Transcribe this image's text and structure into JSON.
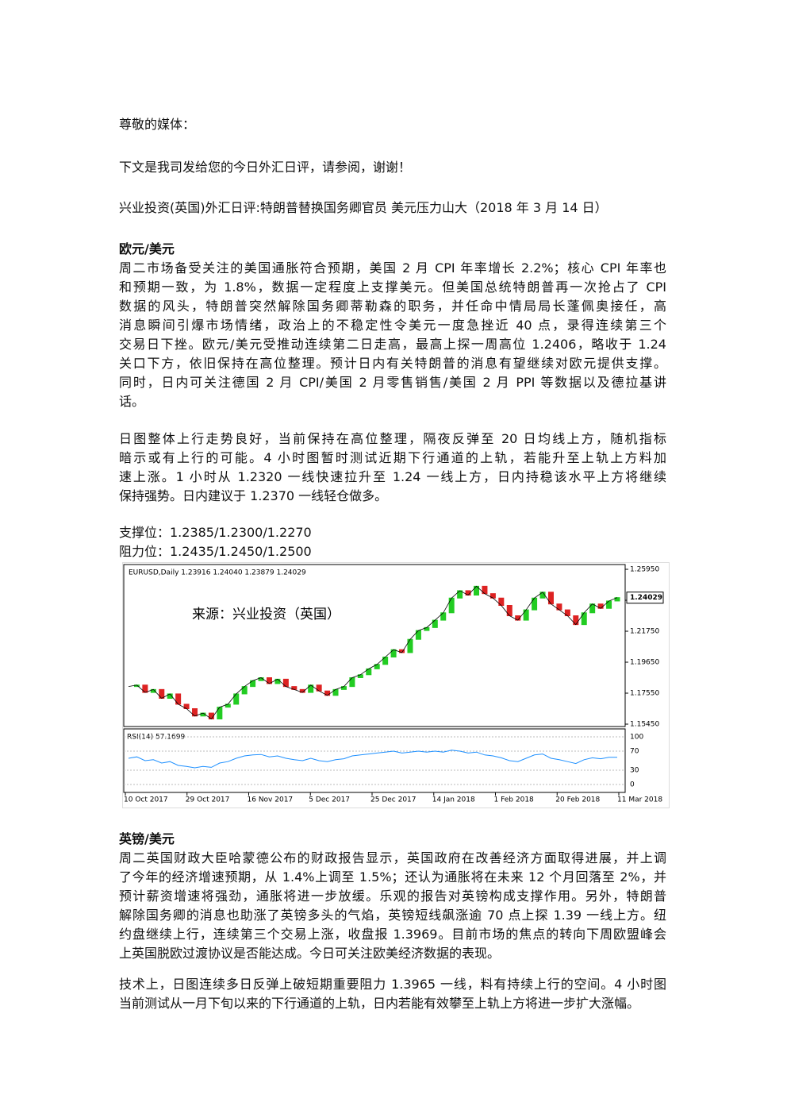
{
  "greeting": "尊敬的媒体：",
  "intro": "下文是我司发给您的今日外汇日评，请参阅，谢谢！",
  "headline": "兴业投资(英国)外汇日评:特朗普替换国务卿官员 美元压力山大（2018 年 3 月 14 日）",
  "eur": {
    "title": "欧元/美元",
    "p1": [
      "周二市场备受关注的美国通胀符合预期，美国 2 月 CPI 年率增长 2.2%；核心 CPI 年率也",
      "和预期一致，为 1.8%，数据一定程度上支撑美元。但美国总统特朗普再一次抢占了 CPI",
      "数据的风头，特朗普突然解除国务卿蒂勒森的职务，并任命中情局局长蓬佩奥接任，高",
      "消息瞬间引爆市场情绪，政治上的不稳定性令美元一度急挫近 40 点，录得连续第三个",
      "交易日下挫。欧元/美元受推动连续第二日走高，最高上探一周高位 1.2406，略收于 1.24",
      "关口下方，依旧保持在高位整理。预计日内有关特朗普的消息有望继续对欧元提供支撑。",
      "同时，日内可关注德国 2 月 CPI/美国 2 月零售销售/美国 2 月 PPI 等数据以及德拉基讲",
      "话。"
    ],
    "p2": [
      "日图整体上行走势良好，当前保持在高位整理，隔夜反弹至 20 日均线上方，随机指标",
      "暗示或有上行的可能。4 小时图暂时测试近期下行通道的上轨，若能升至上轨上方料加",
      "速上涨。1 小时从 1.2320 一线快速拉升至 1.24 一线上方，日内持稳该水平上方将继续",
      "保持强势。日内建议于 1.2370 一线轻仓做多。"
    ],
    "support": "支撑位：1.2385/1.2300/1.2270",
    "resistance": "阻力位：1.2435/1.2450/1.2500"
  },
  "chart": {
    "header": "EURUSD,Daily  1.23916 1.24040 1.23879 1.24029",
    "watermark": "来源：兴业投资（英国）",
    "rsi_label": "RSI(14) 57.1699",
    "dates": [
      "10 Oct 2017",
      "29 Oct 2017",
      "16 Nov 2017",
      "5 Dec 2017",
      "25 Dec 2017",
      "14 Jan 2018",
      "1 Feb 2018",
      "20 Feb 2018",
      "11 Mar 2018"
    ],
    "ylim": [
      1.1545,
      1.2595
    ],
    "yticks": [
      {
        "value": 1.2595,
        "label": "1.25950"
      },
      {
        "value": 1.2385,
        "label": "1.23850"
      },
      {
        "value": 1.2175,
        "label": "1.21750"
      },
      {
        "value": 1.1965,
        "label": "1.19650"
      },
      {
        "value": 1.1755,
        "label": "1.17550"
      },
      {
        "value": 1.1545,
        "label": "1.15450"
      }
    ],
    "current": {
      "value": 1.24029,
      "label": "1.24029"
    },
    "rsi_ylim": [
      0,
      100
    ],
    "rsi_ticks": [
      100,
      70,
      30,
      0
    ],
    "closes": [
      1.18,
      1.181,
      1.176,
      1.178,
      1.172,
      1.175,
      1.168,
      1.165,
      1.16,
      1.162,
      1.158,
      1.166,
      1.168,
      1.175,
      1.18,
      1.184,
      1.186,
      1.182,
      1.185,
      1.18,
      1.178,
      1.176,
      1.181,
      1.177,
      1.174,
      1.178,
      1.18,
      1.186,
      1.188,
      1.192,
      1.195,
      1.2,
      1.205,
      1.203,
      1.212,
      1.218,
      1.22,
      1.225,
      1.23,
      1.24,
      1.245,
      1.242,
      1.248,
      1.243,
      1.24,
      1.235,
      1.228,
      1.225,
      1.232,
      1.24,
      1.244,
      1.236,
      1.232,
      1.228,
      1.222,
      1.23,
      1.236,
      1.233,
      1.238,
      1.24029
    ],
    "rsi": [
      55,
      58,
      50,
      52,
      45,
      48,
      40,
      38,
      35,
      38,
      36,
      45,
      48,
      55,
      60,
      62,
      63,
      58,
      60,
      55,
      52,
      50,
      55,
      50,
      48,
      52,
      54,
      60,
      62,
      64,
      66,
      68,
      70,
      66,
      68,
      70,
      68,
      70,
      68,
      72,
      70,
      66,
      68,
      62,
      60,
      56,
      50,
      48,
      55,
      62,
      64,
      55,
      52,
      48,
      44,
      52,
      56,
      54,
      57,
      57.1699
    ]
  },
  "gbp": {
    "title": "英镑/美元",
    "p3": [
      "周二英国财政大臣哈蒙德公布的财政报告显示，英国政府在改善经济方面取得进展，并上调",
      "了今年的经济增速预期，从 1.4%上调至 1.5%；还认为通胀将在未来 12 个月回落至 2%，并",
      "预计薪资增速将强劲，通胀将进一步放缓。乐观的报告对英镑构成支撑作用。另外，特朗普",
      "解除国务卿的消息也助涨了英镑多头的气焰，英镑短线飙涨逾 70 点上探 1.39 一线上方。纽",
      "约盘继续上行，连续第三个交易上涨，收盘报 1.3969。目前市场的焦点的转向下周欧盟峰会",
      "上英国脱欧过渡协议是否能达成。今日可关注欧美经济数据的表现。"
    ],
    "p4": [
      "技术上，日图连续多日反弹上破短期重要阻力 1.3965 一线，料有持续上行的空间。4 小时图",
      "当前测试从一月下旬以来的下行通道的上轨，日内若能有效攀至上轨上方将进一步扩大涨幅。"
    ]
  }
}
